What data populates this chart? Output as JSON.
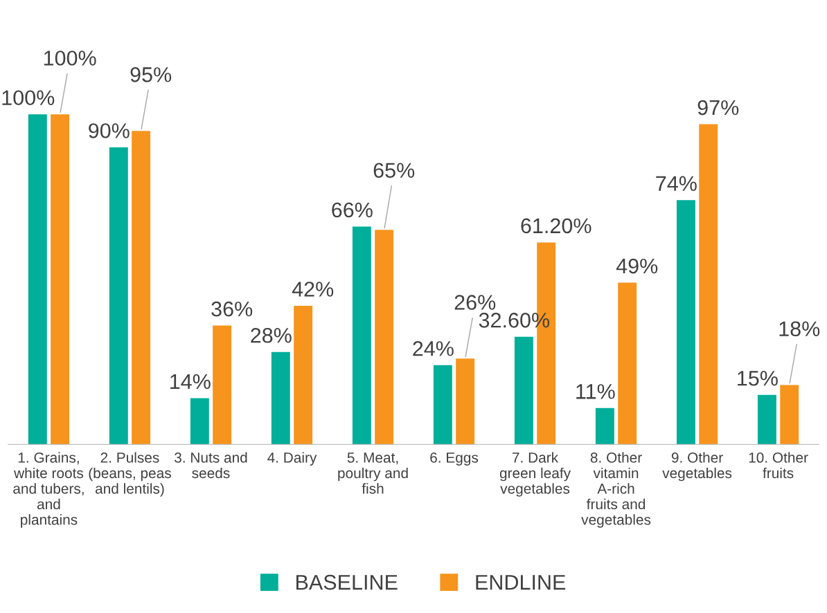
{
  "chart_data": {
    "type": "bar",
    "categories": [
      "1. Grains, white roots and tubers, and plantains",
      "2. Pulses (beans, peas and lentils)",
      "3. Nuts and seeds",
      "4. Dairy",
      "5. Meat, poultry and fish",
      "6. Eggs",
      "7. Dark green leafy vegetables",
      "8. Other vitamin A-rich fruits and vegetables",
      "9. Other vegetables",
      "10. Other fruits"
    ],
    "series": [
      {
        "name": "BASELINE",
        "color": "#00ae9a",
        "values": [
          100,
          90,
          14,
          28,
          66,
          24,
          32.6,
          11,
          74,
          15
        ],
        "value_labels": [
          "100%",
          "90%",
          "14%",
          "28%",
          "66%",
          "24%",
          "32.60%",
          "11%",
          "74%",
          "15%"
        ]
      },
      {
        "name": "ENDLINE",
        "color": "#f7941d",
        "values": [
          100,
          95,
          36,
          42,
          65,
          26,
          61.2,
          49,
          97,
          18
        ],
        "value_labels": [
          "100%",
          "95%",
          "36%",
          "42%",
          "65%",
          "26%",
          "61.20%",
          "49%",
          "97%",
          "18%"
        ]
      }
    ],
    "legend": "bottom",
    "grid": false
  }
}
